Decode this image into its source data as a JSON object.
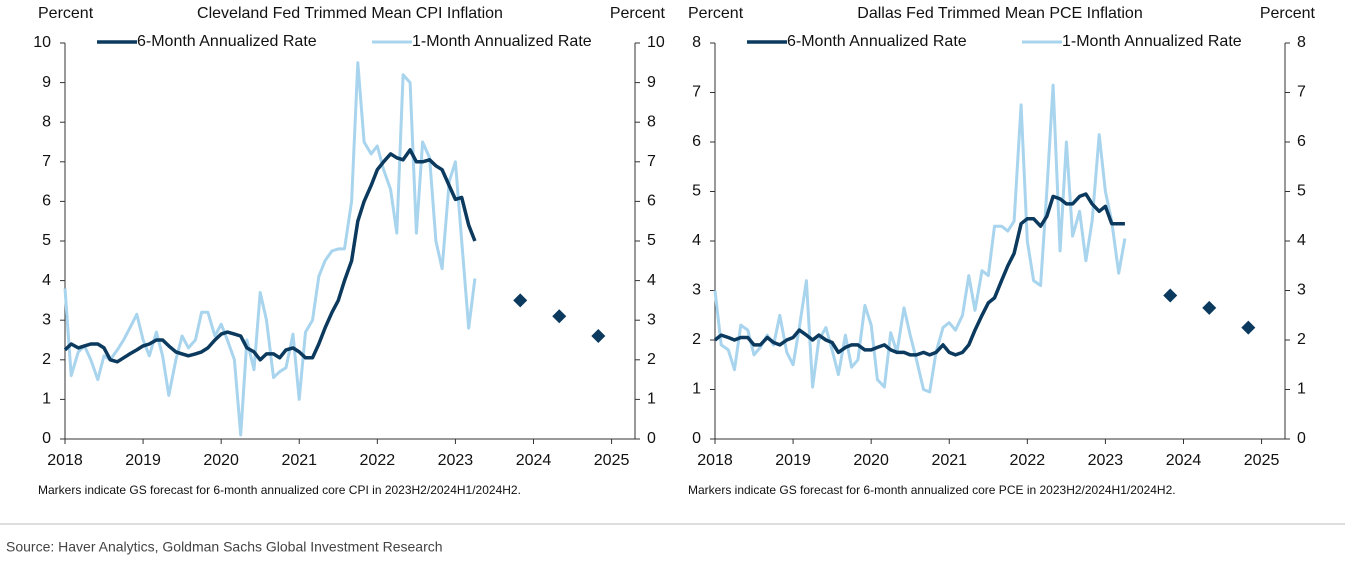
{
  "chart_data": [
    {
      "type": "line",
      "title": "Cleveland Fed Trimmed Mean CPI Inflation",
      "ylabel": "Percent",
      "y2label": "Percent",
      "note": "Markers indicate GS forecast for 6-month annualized core CPI in 2023H2/2024H1/2024H2.",
      "xlim": [
        2018,
        2025.3
      ],
      "xticks": [
        2018,
        2019,
        2020,
        2021,
        2022,
        2023,
        2024,
        2025
      ],
      "ylim": [
        0,
        10
      ],
      "yticks": [
        0,
        1,
        2,
        3,
        4,
        5,
        6,
        7,
        8,
        9,
        10
      ],
      "x": [
        2018,
        2018.08,
        2018.17,
        2018.25,
        2018.33,
        2018.42,
        2018.5,
        2018.58,
        2018.67,
        2018.75,
        2018.83,
        2018.92,
        2019,
        2019.08,
        2019.17,
        2019.25,
        2019.33,
        2019.42,
        2019.5,
        2019.58,
        2019.67,
        2019.75,
        2019.83,
        2019.92,
        2020,
        2020.08,
        2020.17,
        2020.25,
        2020.33,
        2020.42,
        2020.5,
        2020.58,
        2020.67,
        2020.75,
        2020.83,
        2020.92,
        2021,
        2021.08,
        2021.17,
        2021.25,
        2021.33,
        2021.42,
        2021.5,
        2021.58,
        2021.67,
        2021.75,
        2021.83,
        2021.92,
        2022,
        2022.08,
        2022.17,
        2022.25,
        2022.33,
        2022.42,
        2022.5,
        2022.58,
        2022.67,
        2022.75,
        2022.83,
        2022.92,
        2023,
        2023.08,
        2023.17,
        2023.25
      ],
      "series": [
        {
          "name": "1-Month Annualized Rate",
          "color": "#a8d4ee",
          "width": 3,
          "values": [
            3.8,
            1.6,
            2.2,
            2.35,
            2.0,
            1.5,
            2.1,
            2.0,
            2.25,
            2.5,
            2.8,
            3.15,
            2.5,
            2.1,
            2.7,
            2.1,
            1.1,
            2.0,
            2.6,
            2.3,
            2.5,
            3.2,
            3.2,
            2.6,
            2.9,
            2.5,
            2.0,
            0.1,
            2.5,
            1.75,
            3.7,
            3.0,
            1.55,
            1.7,
            1.8,
            2.65,
            1.0,
            2.7,
            3.0,
            4.1,
            4.5,
            4.75,
            4.8,
            4.8,
            6.0,
            9.5,
            7.5,
            7.2,
            7.4,
            6.8,
            6.3,
            5.2,
            9.2,
            9.0,
            5.2,
            7.5,
            7.1,
            5.0,
            4.3,
            6.5,
            7.0,
            5.0,
            2.8,
            4.05
          ]
        },
        {
          "name": "6-Month Annualized Rate",
          "color": "#0b3a5e",
          "width": 3.5,
          "values": [
            2.25,
            2.4,
            2.3,
            2.35,
            2.4,
            2.4,
            2.3,
            2.0,
            1.95,
            2.05,
            2.15,
            2.25,
            2.35,
            2.4,
            2.5,
            2.5,
            2.35,
            2.2,
            2.15,
            2.1,
            2.15,
            2.2,
            2.3,
            2.5,
            2.65,
            2.7,
            2.65,
            2.6,
            2.3,
            2.2,
            2.0,
            2.15,
            2.15,
            2.05,
            2.25,
            2.3,
            2.2,
            2.05,
            2.05,
            2.4,
            2.8,
            3.2,
            3.5,
            4.0,
            4.5,
            5.5,
            6.0,
            6.4,
            6.8,
            7.0,
            7.2,
            7.1,
            7.05,
            7.3,
            7.0,
            7.0,
            7.05,
            6.9,
            6.8,
            6.4,
            6.05,
            6.1,
            5.4,
            5.0
          ]
        },
        {
          "marker": "diamond",
          "color": "#0b3a5e",
          "x": [
            2023.83,
            2024.33,
            2024.83
          ],
          "values": [
            3.5,
            3.1,
            2.6
          ]
        }
      ]
    },
    {
      "type": "line",
      "title": "Dallas Fed Trimmed Mean PCE Inflation",
      "ylabel": "Percent",
      "y2label": "Percent",
      "note": "Markers indicate GS forecast for 6-month annualized core PCE in 2023H2/2024H1/2024H2.",
      "xlim": [
        2018,
        2025.3
      ],
      "xticks": [
        2018,
        2019,
        2020,
        2021,
        2022,
        2023,
        2024,
        2025
      ],
      "ylim": [
        0,
        8
      ],
      "yticks": [
        0,
        1,
        2,
        3,
        4,
        5,
        6,
        7,
        8
      ],
      "x": [
        2018,
        2018.08,
        2018.17,
        2018.25,
        2018.33,
        2018.42,
        2018.5,
        2018.58,
        2018.67,
        2018.75,
        2018.83,
        2018.92,
        2019,
        2019.08,
        2019.17,
        2019.25,
        2019.33,
        2019.42,
        2019.5,
        2019.58,
        2019.67,
        2019.75,
        2019.83,
        2019.92,
        2020,
        2020.08,
        2020.17,
        2020.25,
        2020.33,
        2020.42,
        2020.5,
        2020.58,
        2020.67,
        2020.75,
        2020.83,
        2020.92,
        2021,
        2021.08,
        2021.17,
        2021.25,
        2021.33,
        2021.42,
        2021.5,
        2021.58,
        2021.67,
        2021.75,
        2021.83,
        2021.92,
        2022,
        2022.08,
        2022.17,
        2022.25,
        2022.33,
        2022.42,
        2022.5,
        2022.58,
        2022.67,
        2022.75,
        2022.83,
        2022.92,
        2023,
        2023.08,
        2023.17,
        2023.25
      ],
      "series": [
        {
          "name": "1-Month Annualized Rate",
          "color": "#a8d4ee",
          "width": 3,
          "values": [
            3.0,
            1.9,
            1.8,
            1.4,
            2.3,
            2.2,
            1.7,
            1.85,
            2.1,
            1.9,
            2.5,
            1.75,
            1.5,
            2.25,
            3.2,
            1.05,
            2.0,
            2.25,
            1.8,
            1.3,
            2.1,
            1.45,
            1.6,
            2.7,
            2.3,
            1.2,
            1.05,
            2.15,
            1.75,
            2.65,
            2.1,
            1.6,
            1.0,
            0.95,
            1.75,
            2.25,
            2.35,
            2.2,
            2.5,
            3.3,
            2.6,
            3.4,
            3.3,
            4.3,
            4.3,
            4.2,
            4.4,
            6.75,
            4.0,
            3.2,
            3.1,
            5.0,
            7.15,
            3.8,
            6.0,
            4.1,
            4.6,
            3.6,
            4.4,
            6.15,
            5.0,
            4.4,
            3.35,
            4.05
          ]
        },
        {
          "name": "6-Month Annualized Rate",
          "color": "#0b3a5e",
          "width": 3.5,
          "values": [
            2.0,
            2.1,
            2.05,
            2.0,
            2.05,
            2.05,
            1.9,
            1.9,
            2.05,
            1.95,
            1.9,
            2.0,
            2.05,
            2.2,
            2.1,
            2.0,
            2.1,
            2.0,
            1.95,
            1.75,
            1.85,
            1.9,
            1.9,
            1.8,
            1.8,
            1.85,
            1.9,
            1.8,
            1.75,
            1.75,
            1.7,
            1.7,
            1.75,
            1.7,
            1.75,
            1.9,
            1.75,
            1.7,
            1.75,
            1.9,
            2.2,
            2.5,
            2.75,
            2.85,
            3.2,
            3.5,
            3.75,
            4.35,
            4.45,
            4.45,
            4.3,
            4.5,
            4.9,
            4.85,
            4.75,
            4.75,
            4.9,
            4.95,
            4.75,
            4.6,
            4.7,
            4.35,
            4.35,
            4.35
          ]
        },
        {
          "marker": "diamond",
          "color": "#0b3a5e",
          "x": [
            2023.83,
            2024.33,
            2024.83
          ],
          "values": [
            2.9,
            2.65,
            2.25
          ]
        }
      ]
    }
  ],
  "source": "Source: Haver Analytics, Goldman Sachs Global Investment Research"
}
